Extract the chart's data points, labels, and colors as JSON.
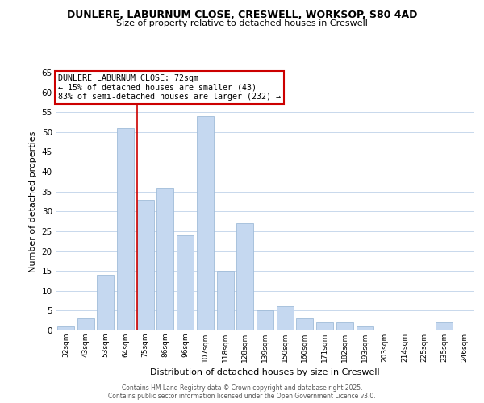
{
  "title_line1": "DUNLERE, LABURNUM CLOSE, CRESWELL, WORKSOP, S80 4AD",
  "title_line2": "Size of property relative to detached houses in Creswell",
  "xlabel": "Distribution of detached houses by size in Creswell",
  "ylabel": "Number of detached properties",
  "categories": [
    "32sqm",
    "43sqm",
    "53sqm",
    "64sqm",
    "75sqm",
    "86sqm",
    "96sqm",
    "107sqm",
    "118sqm",
    "128sqm",
    "139sqm",
    "150sqm",
    "160sqm",
    "171sqm",
    "182sqm",
    "193sqm",
    "203sqm",
    "214sqm",
    "225sqm",
    "235sqm",
    "246sqm"
  ],
  "values": [
    1,
    3,
    14,
    51,
    33,
    36,
    24,
    54,
    15,
    27,
    5,
    6,
    3,
    2,
    2,
    1,
    0,
    0,
    0,
    2,
    0
  ],
  "bar_color": "#c5d8f0",
  "bar_edge_color": "#a0bcd8",
  "ylim": [
    0,
    65
  ],
  "yticks": [
    0,
    5,
    10,
    15,
    20,
    25,
    30,
    35,
    40,
    45,
    50,
    55,
    60,
    65
  ],
  "vline_color": "#cc0000",
  "annotation_title": "DUNLERE LABURNUM CLOSE: 72sqm",
  "annotation_line1": "← 15% of detached houses are smaller (43)",
  "annotation_line2": "83% of semi-detached houses are larger (232) →",
  "annotation_box_color": "#ffffff",
  "annotation_box_edge": "#cc0000",
  "footnote1": "Contains HM Land Registry data © Crown copyright and database right 2025.",
  "footnote2": "Contains public sector information licensed under the Open Government Licence v3.0.",
  "background_color": "#ffffff",
  "grid_color": "#c8d8ec"
}
